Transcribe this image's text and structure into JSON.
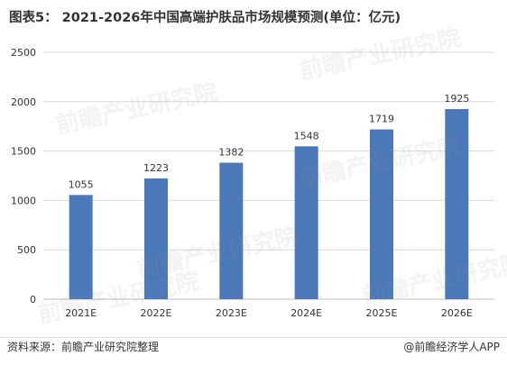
{
  "title": "图表5： 2021-2026年中国高端护肤品市场规模预测(单位：亿元)",
  "source": "资料来源：前瞻产业研究院整理",
  "brand": "@前瞻经济学人APP",
  "watermark": "前瞻产业研究院",
  "colors": {
    "bar": "#4a78b8",
    "axis": "#bfbfbf",
    "grid": "#d9d9d9",
    "text": "#333333"
  },
  "chart_data": {
    "type": "bar",
    "categories": [
      "2021E",
      "2022E",
      "2023E",
      "2024E",
      "2025E",
      "2026E"
    ],
    "values": [
      1055,
      1223,
      1382,
      1548,
      1719,
      1925
    ],
    "data_labels": [
      "1055",
      "1223",
      "1382",
      "1548",
      "1719",
      "1925"
    ],
    "yticks": [
      0,
      500,
      1000,
      1500,
      2000,
      2500
    ],
    "ylim": [
      0,
      2500
    ],
    "grid": true,
    "legend": "none"
  }
}
